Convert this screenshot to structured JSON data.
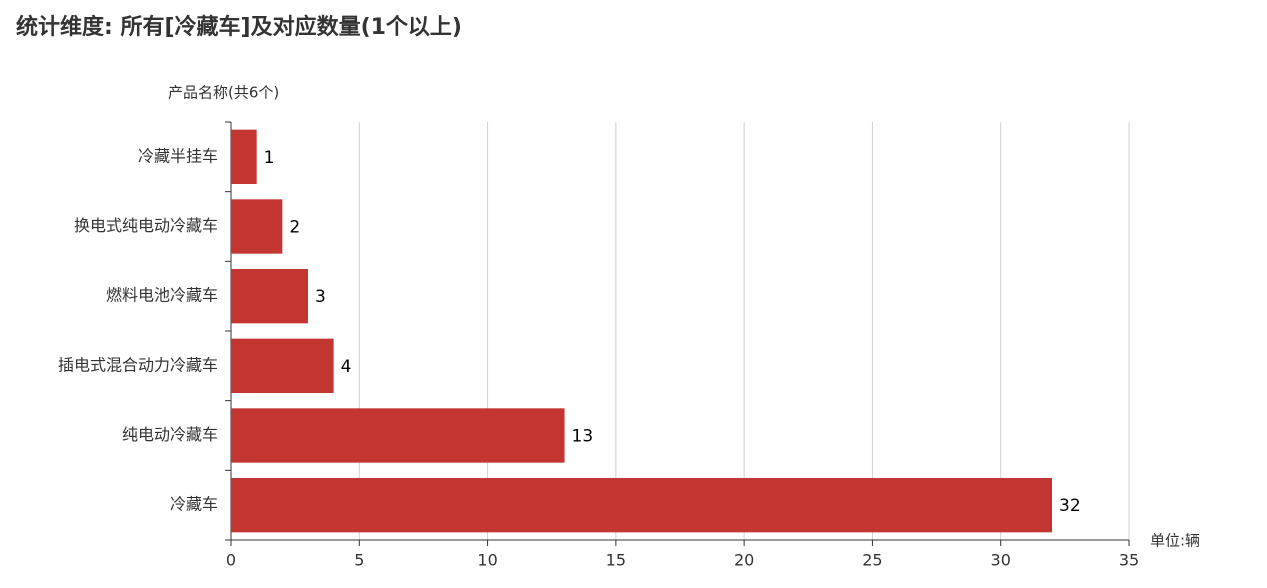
{
  "chart_data": {
    "type": "bar",
    "orientation": "horizontal",
    "title": "统计维度: 所有[冷藏车]及对应数量(1个以上)",
    "y_axis_label": "产品名称(共6个)",
    "x_axis_label": "单位:辆",
    "categories": [
      "冷藏半挂车",
      "换电式纯电动冷藏车",
      "燃料电池冷藏车",
      "插电式混合动力冷藏车",
      "纯电动冷藏车",
      "冷藏车"
    ],
    "values": [
      1,
      2,
      3,
      4,
      13,
      32
    ],
    "color": "#c23531",
    "xlim": [
      0,
      35
    ],
    "xticks": [
      0,
      5,
      10,
      15,
      20,
      25,
      30,
      35
    ],
    "grid": true
  }
}
